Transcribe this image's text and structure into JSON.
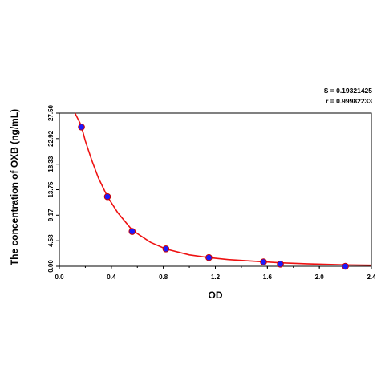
{
  "chart_data": {
    "type": "scatter",
    "title": "",
    "xlabel": "OD",
    "ylabel": "The concentration of OXB (ng/mL)",
    "xlim": [
      0.0,
      2.4
    ],
    "ylim": [
      0.0,
      27.5
    ],
    "x_ticks": [
      "0.0",
      "0.4",
      "0.8",
      "1.2",
      "1.6",
      "2.0",
      "2.4"
    ],
    "x_tick_values": [
      0.0,
      0.4,
      0.8,
      1.2,
      1.6,
      2.0,
      2.4
    ],
    "y_ticks": [
      "0.00",
      "4.58",
      "9.17",
      "13.75",
      "18.33",
      "22.92",
      "27.50"
    ],
    "y_tick_values": [
      0.0,
      4.58,
      9.17,
      13.75,
      18.33,
      22.92,
      27.5
    ],
    "grid": false,
    "stats": {
      "s": "S = 0.19321425",
      "r": "r = 0.99982233"
    },
    "series": [
      {
        "points": {
          "x": [
            0.17,
            0.37,
            0.56,
            0.82,
            1.15,
            1.57,
            1.7,
            2.2
          ],
          "y": [
            25.0,
            12.5,
            6.25,
            3.12,
            1.56,
            0.78,
            0.39,
            0.0
          ]
        },
        "marker_color": "#1a1aff",
        "marker_edge": "#cc0000"
      },
      {
        "curve_color": "#ee1111",
        "curve": {
          "x": [
            0.12,
            0.14,
            0.16,
            0.18,
            0.2,
            0.25,
            0.3,
            0.37,
            0.45,
            0.56,
            0.7,
            0.82,
            1.0,
            1.15,
            1.3,
            1.57,
            1.7,
            1.9,
            2.2,
            2.4
          ],
          "y": [
            27.5,
            26.6,
            25.7,
            24.2,
            22.5,
            19.0,
            15.9,
            12.5,
            9.6,
            6.5,
            4.3,
            3.1,
            2.05,
            1.55,
            1.2,
            0.8,
            0.62,
            0.45,
            0.25,
            0.18
          ]
        }
      }
    ]
  }
}
